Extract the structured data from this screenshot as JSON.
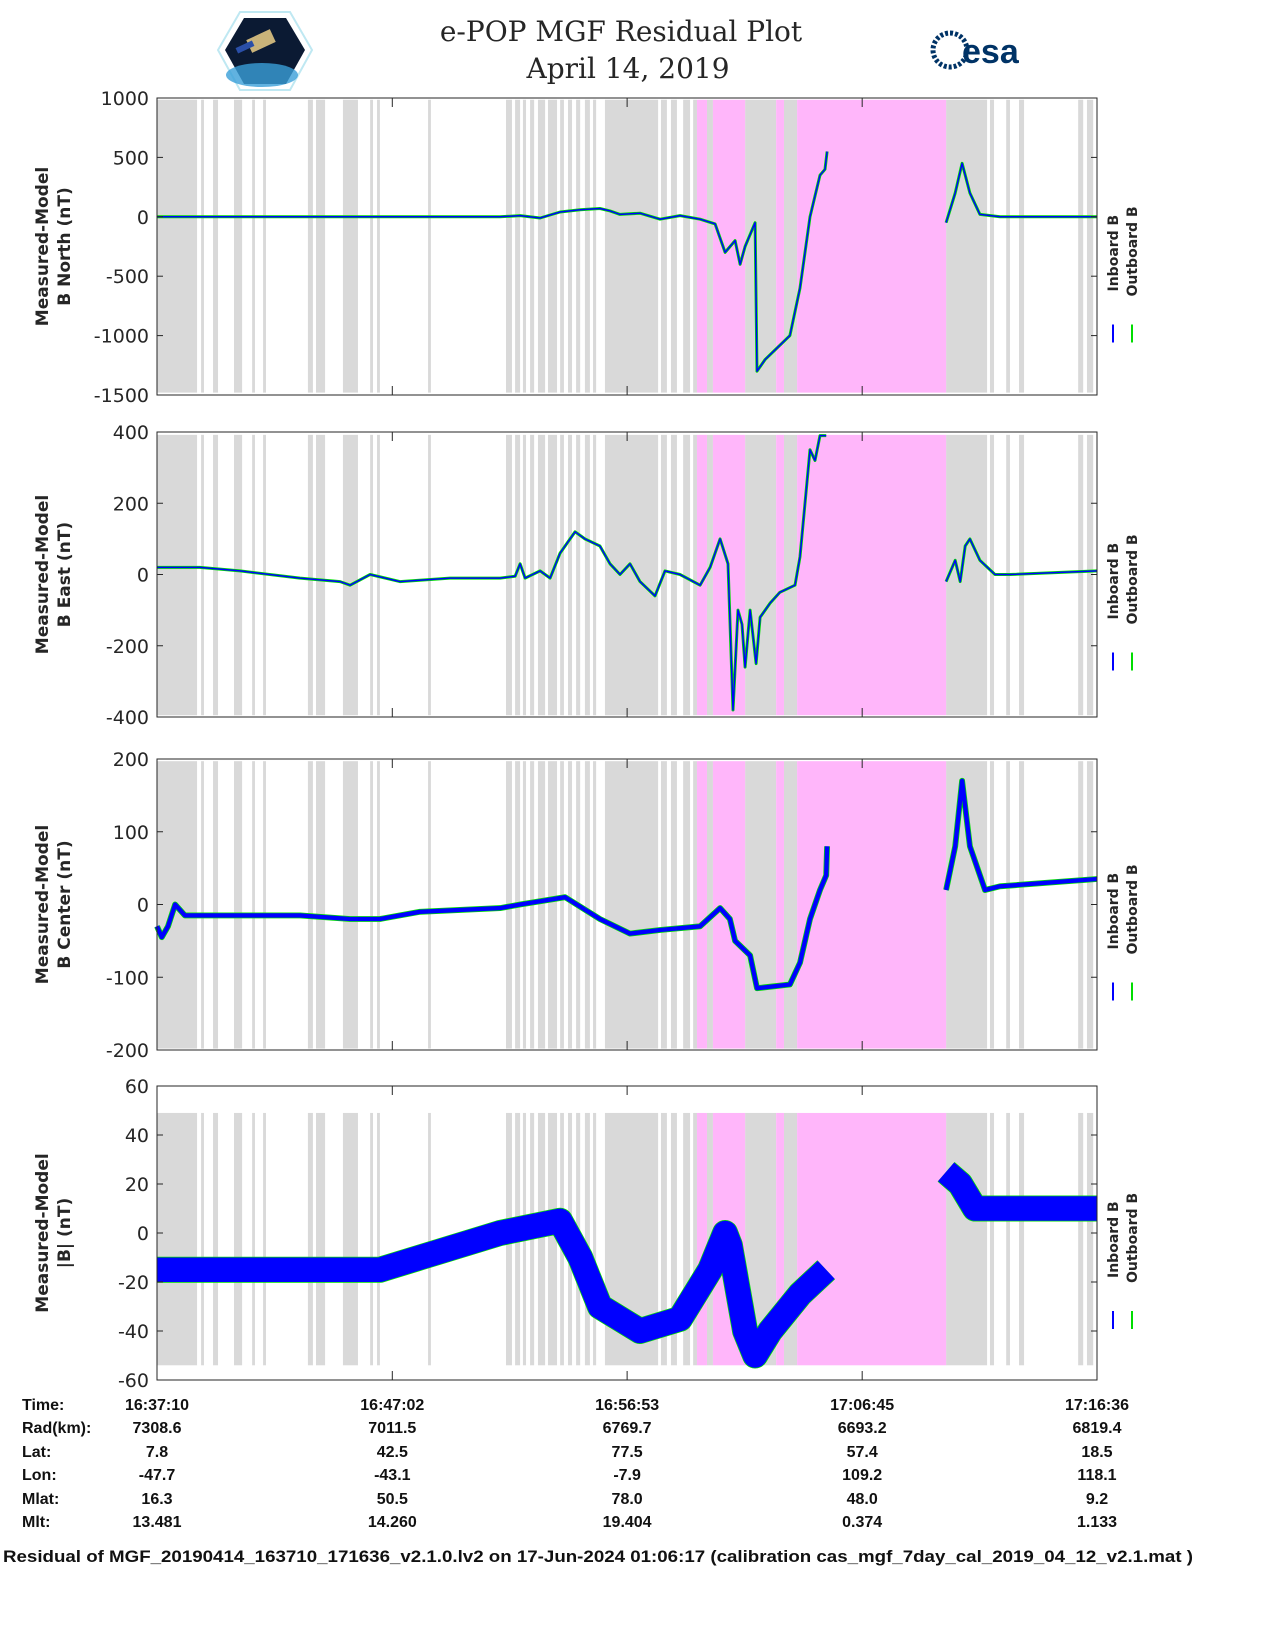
{
  "title_line1": "e-POP MGF Residual Plot",
  "title_line2": "April 14, 2019",
  "logos": {
    "left": "e-POP CASSIOPE mission patch",
    "right_text": "esa"
  },
  "colors": {
    "inboard": "#0000ff",
    "outboard": "#00dd00",
    "mode_gray": "#d9d9d9",
    "mode_pink": "#ffb6fa"
  },
  "legend": {
    "inboard": "Inboard B",
    "outboard": "Outboard B"
  },
  "chart_data": [
    {
      "type": "line",
      "ylabel": [
        "Measured-Model",
        "B North (nT)"
      ],
      "ylim": [
        -1500,
        1000
      ],
      "yticks": [
        "-1500",
        "-1000",
        "-500",
        "0",
        "500",
        "1000"
      ],
      "band_range": [
        -1480,
        985
      ],
      "spread": 0,
      "series": [
        [
          [
            0,
            0
          ],
          [
            14.39,
            0
          ],
          [
            15.23,
            10
          ],
          [
            16.07,
            -10
          ],
          [
            16.91,
            40
          ],
          [
            17.75,
            60
          ],
          [
            18.58,
            70
          ],
          [
            19.0,
            50
          ],
          [
            19.42,
            20
          ],
          [
            20.26,
            30
          ],
          [
            21.1,
            -20
          ],
          [
            21.94,
            10
          ],
          [
            22.78,
            -20
          ],
          [
            23.41,
            -60
          ],
          [
            23.83,
            -300
          ],
          [
            24.25,
            -200
          ],
          [
            24.46,
            -400
          ],
          [
            24.67,
            -250
          ],
          [
            24.88,
            -150
          ],
          [
            25.09,
            -50
          ],
          [
            25.17,
            -1300
          ],
          [
            25.51,
            -1200
          ],
          [
            26.55,
            -1000
          ],
          [
            26.97,
            -600
          ],
          [
            27.39,
            0
          ],
          [
            27.81,
            350
          ],
          [
            28.02,
            400
          ],
          [
            28.11,
            550
          ]
        ],
        [
          [
            33.1,
            -50
          ],
          [
            33.48,
            200
          ],
          [
            33.77,
            450
          ],
          [
            34.1,
            200
          ],
          [
            34.52,
            20
          ],
          [
            35.36,
            0
          ],
          [
            39.43,
            0
          ]
        ]
      ]
    },
    {
      "type": "line",
      "ylabel": [
        "Measured-Model",
        "B East (nT)"
      ],
      "ylim": [
        -400,
        400
      ],
      "yticks": [
        "-400",
        "-200",
        "0",
        "200",
        "400"
      ],
      "band_range": [
        -395,
        392
      ],
      "spread": 0,
      "series": [
        [
          [
            0,
            20
          ],
          [
            1.8,
            20
          ],
          [
            3.48,
            10
          ],
          [
            6.0,
            -10
          ],
          [
            7.68,
            -20
          ],
          [
            8.1,
            -30
          ],
          [
            8.94,
            0
          ],
          [
            10.19,
            -20
          ],
          [
            12.29,
            -10
          ],
          [
            14.39,
            -10
          ],
          [
            15.02,
            -5
          ],
          [
            15.23,
            30
          ],
          [
            15.44,
            -10
          ],
          [
            16.07,
            10
          ],
          [
            16.49,
            -10
          ],
          [
            16.91,
            60
          ],
          [
            17.54,
            120
          ],
          [
            17.95,
            100
          ],
          [
            18.58,
            80
          ],
          [
            19.0,
            30
          ],
          [
            19.42,
            0
          ],
          [
            19.84,
            30
          ],
          [
            20.26,
            -20
          ],
          [
            20.89,
            -60
          ],
          [
            21.31,
            10
          ],
          [
            21.94,
            0
          ],
          [
            22.78,
            -30
          ],
          [
            23.2,
            20
          ],
          [
            23.62,
            100
          ],
          [
            23.95,
            30
          ],
          [
            24.16,
            -380
          ],
          [
            24.37,
            -100
          ],
          [
            24.54,
            -140
          ],
          [
            24.67,
            -260
          ],
          [
            24.88,
            -100
          ],
          [
            25.13,
            -250
          ],
          [
            25.3,
            -120
          ],
          [
            25.72,
            -80
          ],
          [
            26.13,
            -50
          ],
          [
            26.76,
            -30
          ],
          [
            26.97,
            50
          ],
          [
            27.18,
            200
          ],
          [
            27.39,
            350
          ],
          [
            27.6,
            320
          ],
          [
            27.81,
            390
          ],
          [
            28.07,
            390
          ]
        ],
        [
          [
            33.1,
            -20
          ],
          [
            33.48,
            40
          ],
          [
            33.69,
            -20
          ],
          [
            33.9,
            80
          ],
          [
            34.1,
            100
          ],
          [
            34.52,
            40
          ],
          [
            35.15,
            0
          ],
          [
            35.78,
            0
          ],
          [
            39.43,
            10
          ]
        ]
      ]
    },
    {
      "type": "line",
      "ylabel": [
        "Measured-Model",
        "B Center (nT)"
      ],
      "ylim": [
        -200,
        200
      ],
      "yticks": [
        "-200",
        "-100",
        "0",
        "100",
        "200"
      ],
      "band_range": [
        -198,
        197
      ],
      "spread": 3,
      "series": [
        [
          [
            0,
            -30
          ],
          [
            0.2,
            -45
          ],
          [
            0.46,
            -30
          ],
          [
            0.76,
            0
          ],
          [
            1.17,
            -15
          ],
          [
            3.48,
            -15
          ],
          [
            6.0,
            -15
          ],
          [
            8.1,
            -20
          ],
          [
            9.35,
            -20
          ],
          [
            11.03,
            -10
          ],
          [
            14.39,
            -5
          ],
          [
            15.23,
            0
          ],
          [
            17.12,
            10
          ],
          [
            18.58,
            -20
          ],
          [
            19.84,
            -40
          ],
          [
            21.1,
            -35
          ],
          [
            22.78,
            -30
          ],
          [
            23.62,
            -5
          ],
          [
            24.03,
            -20
          ],
          [
            24.25,
            -50
          ],
          [
            24.88,
            -70
          ],
          [
            25.17,
            -115
          ],
          [
            26.55,
            -110
          ],
          [
            26.97,
            -80
          ],
          [
            27.39,
            -20
          ],
          [
            27.81,
            20
          ],
          [
            28.07,
            40
          ],
          [
            28.11,
            80
          ]
        ],
        [
          [
            33.1,
            20
          ],
          [
            33.48,
            80
          ],
          [
            33.77,
            170
          ],
          [
            34.1,
            80
          ],
          [
            34.73,
            20
          ],
          [
            35.36,
            25
          ],
          [
            39.43,
            35
          ]
        ]
      ]
    },
    {
      "type": "line",
      "ylabel": [
        "Measured-Model",
        "|B| (nT)"
      ],
      "ylim": [
        -60,
        60
      ],
      "yticks": [
        "-60",
        "-40",
        "-20",
        "0",
        "20",
        "40",
        "60"
      ],
      "band_range": [
        -54,
        49
      ],
      "spread": 5,
      "series": [
        [
          [
            0,
            -15
          ],
          [
            1.8,
            -15
          ],
          [
            6.0,
            -15
          ],
          [
            9.35,
            -15
          ],
          [
            11.03,
            -10
          ],
          [
            14.39,
            0
          ],
          [
            16.91,
            5
          ],
          [
            17.75,
            -10
          ],
          [
            18.58,
            -30
          ],
          [
            20.26,
            -40
          ],
          [
            21.94,
            -35
          ],
          [
            23.2,
            -15
          ],
          [
            23.83,
            0
          ],
          [
            24.03,
            -5
          ],
          [
            24.67,
            -40
          ],
          [
            25.09,
            -50
          ],
          [
            25.72,
            -40
          ],
          [
            26.97,
            -25
          ],
          [
            28.07,
            -15
          ]
        ],
        [
          [
            33.1,
            25
          ],
          [
            33.69,
            20
          ],
          [
            34.31,
            10
          ],
          [
            35.36,
            10
          ],
          [
            39.43,
            10
          ]
        ]
      ]
    }
  ],
  "mode_bands": {
    "gray": [
      [
        0,
        1.68
      ],
      [
        1.85,
        1.97
      ],
      [
        2.35,
        2.56
      ],
      [
        3.23,
        3.57
      ],
      [
        3.99,
        4.11
      ],
      [
        4.45,
        4.57
      ],
      [
        6.33,
        6.54
      ],
      [
        6.67,
        7.05
      ],
      [
        7.8,
        8.43
      ],
      [
        8.94,
        9.06
      ],
      [
        9.23,
        9.35
      ],
      [
        11.37,
        11.49
      ],
      [
        14.64,
        14.89
      ],
      [
        15.02,
        15.23
      ],
      [
        15.35,
        15.48
      ],
      [
        15.65,
        15.82
      ],
      [
        15.98,
        16.28
      ],
      [
        16.4,
        16.78
      ],
      [
        16.91,
        17.07
      ],
      [
        17.24,
        17.41
      ],
      [
        17.58,
        17.75
      ],
      [
        17.95,
        18.16
      ],
      [
        18.29,
        18.42
      ],
      [
        18.79,
        21.02
      ],
      [
        21.14,
        21.39
      ],
      [
        21.56,
        21.81
      ],
      [
        22.07,
        22.36
      ],
      [
        22.49,
        22.65
      ],
      [
        23.07,
        23.32
      ],
      [
        24.67,
        25.97
      ],
      [
        26.3,
        26.85
      ],
      [
        33.1,
        34.82
      ],
      [
        34.94,
        35.11
      ],
      [
        35.62,
        35.78
      ],
      [
        36.16,
        36.37
      ],
      [
        38.64,
        38.85
      ],
      [
        39.01,
        39.27
      ]
    ],
    "pink": [
      [
        22.65,
        23.07
      ],
      [
        23.32,
        24.67
      ],
      [
        25.97,
        26.3
      ],
      [
        26.85,
        33.1
      ]
    ]
  },
  "x_range_minutes": [
    0,
    39.43
  ],
  "x_tick_minutes": [
    0,
    9.87,
    19.72,
    29.58,
    39.43
  ],
  "table": {
    "row_labels": [
      "Time:",
      "Rad(km):",
      "Lat:",
      "Lon:",
      "Mlat:",
      "Mlt:"
    ],
    "columns": [
      [
        "16:37:10",
        "7308.6",
        "7.8",
        "-47.7",
        "16.3",
        "13.481"
      ],
      [
        "16:47:02",
        "7011.5",
        "42.5",
        "-43.1",
        "50.5",
        "14.260"
      ],
      [
        "16:56:53",
        "6769.7",
        "77.5",
        "-7.9",
        "78.0",
        "19.404"
      ],
      [
        "17:06:45",
        "6693.2",
        "57.4",
        "109.2",
        "48.0",
        "0.374"
      ],
      [
        "17:16:36",
        "6819.4",
        "18.5",
        "118.1",
        "9.2",
        "1.133"
      ]
    ]
  },
  "footer": "Residual of MGF_20190414_163710_171636_v2.1.0.lv2 on 17-Jun-2024 01:06:17 (calibration cas_mgf_7day_cal_2019_04_12_v2.1.mat )"
}
